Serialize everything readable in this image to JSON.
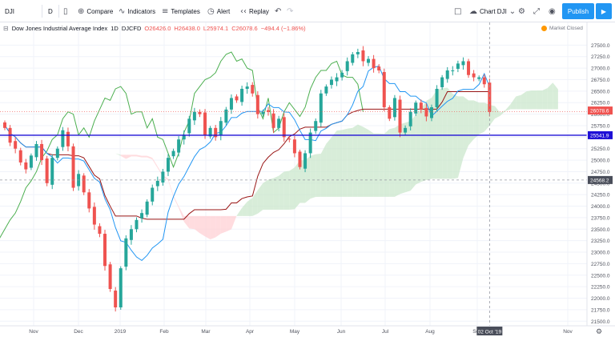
{
  "toolbar": {
    "symbol": "DJI",
    "interval": "D",
    "compare_label": "Compare",
    "indicators_label": "Indicators",
    "templates_label": "Templates",
    "alert_label": "Alert",
    "replay_label": "Replay",
    "layout_label": "Chart DJI",
    "publish_label": "Publish"
  },
  "legend": {
    "title": "Dow Jones Industrial Average Index",
    "interval": "1D",
    "source": "DJCFD",
    "open": "O26426.0",
    "high": "H26438.0",
    "low": "L25974.1",
    "close": "C26078.6",
    "change": "−494.4 (−1.86%)"
  },
  "market_status": "Market Closed",
  "colors": {
    "up": "#26a69a",
    "down": "#ef5350",
    "conversion_line": "#2196f3",
    "base_line": "#991515",
    "lagging_span": "#4caf50",
    "cloud_bull": "#c8e6c9",
    "cloud_bear": "#ffcdd2",
    "horizontal_line": "#1e10d6",
    "accent": "#2196f3"
  },
  "chart_data": {
    "type": "candlestick",
    "symbol": "DJI",
    "price_axis": {
      "ticks": [
        27500,
        27250,
        27000,
        26750,
        26500,
        26250,
        26000,
        25750,
        25500,
        25250,
        25000,
        24750,
        24500,
        24250,
        24000,
        23750,
        23500,
        23250,
        23000,
        22750,
        22500,
        22250,
        22000,
        21750,
        21500
      ],
      "tick_labels": [
        "27500.0",
        "27250.0",
        "27000.0",
        "26750.0",
        "26500.0",
        "26250.0",
        "26000.0",
        "25750.0",
        "25500.0",
        "25250.0",
        "25000.0",
        "24750.0",
        "24500.0",
        "24250.0",
        "24000.0",
        "23750.0",
        "23500.0",
        "23250.0",
        "23000.0",
        "22750.0",
        "22500.0",
        "22250.0",
        "22000.0",
        "21750.0",
        "21500.0"
      ],
      "range": [
        21400,
        27750
      ]
    },
    "time_axis": {
      "labels": [
        "Nov",
        "Dec",
        "2019",
        "Feb",
        "Mar",
        "Apr",
        "May",
        "Jun",
        "Jul",
        "Aug",
        "Sep",
        "Nov"
      ],
      "date_tag": "02 Oct '19"
    },
    "price_tags": [
      {
        "label": "26078.6",
        "value": 26078.6,
        "color": "#ef5350"
      },
      {
        "label": "25541.9",
        "value": 25541.9,
        "color": "#1e10d6"
      },
      {
        "label": "24568.2",
        "value": 24568.2,
        "color": "#4a4e5a"
      }
    ],
    "horizontal_line": 25541.9,
    "crosshair_price": 24568.2,
    "series": [
      {
        "name": "Close",
        "values": [
          25700,
          25380,
          25250,
          24950,
          24800,
          25100,
          25350,
          25000,
          24500,
          25050,
          25250,
          25650,
          25300,
          24400,
          24700,
          24300,
          23950,
          23600,
          23400,
          22700,
          22200,
          21800,
          22650,
          23300,
          23500,
          23700,
          23850,
          24100,
          24400,
          24550,
          24750,
          25050,
          25200,
          25450,
          25550,
          25900,
          26050,
          26000,
          25550,
          25700,
          25500,
          25850,
          26100,
          26350,
          26300,
          26550,
          26600,
          26450,
          26000,
          26050,
          26050,
          25700,
          25900,
          25500,
          25450,
          25150,
          24850,
          25150,
          25600,
          25850,
          26450,
          26600,
          26750,
          26800,
          26900,
          27150,
          27300,
          27350,
          27150,
          27200,
          27000,
          26950,
          26150,
          25900,
          26350,
          25600,
          25700,
          26050,
          26250,
          26100,
          25950,
          26150,
          26550,
          26800,
          26950,
          26950,
          27100,
          27150,
          26850,
          26800,
          26800,
          26650,
          26050
        ]
      }
    ],
    "indicator": "Ichimoku Cloud",
    "indicator_lines": [
      "Conversion Line",
      "Base Line",
      "Lagging Span",
      "Leading Span A",
      "Leading Span B"
    ]
  }
}
